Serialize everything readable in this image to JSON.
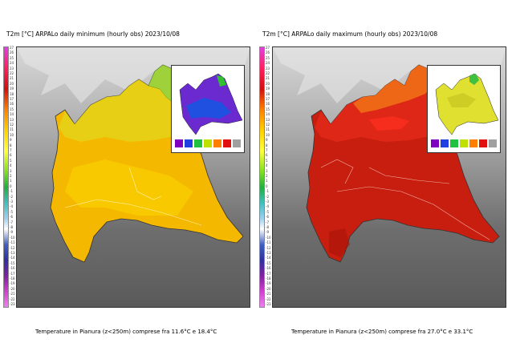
{
  "panels": [
    {
      "title": "T2m [°C] ARPALo daily minimum (hourly obs) 2023/10/08",
      "caption": "Temperature in Pianura (z<250m) comprese fra 11.6°C e 18.4°C",
      "fill_main": "#f5b800",
      "fill_north": "#e4d21a",
      "fill_alpine": "#9fd23a"
    },
    {
      "title": "T2m [°C] ARPALo daily maximum (hourly obs) 2023/10/08",
      "caption": "Temperature in Pianura (z<250m) comprese fra 27.0°C e 33.1°C",
      "fill_main": "#c81e10",
      "fill_north": "#e02818",
      "fill_alpine": "#f07818"
    }
  ],
  "colorbar_ticks": [
    "27",
    "26",
    "25",
    "24",
    "23",
    "22",
    "21",
    "20",
    "19",
    "18",
    "17",
    "16",
    "15",
    "14",
    "13",
    "12",
    "11",
    "10",
    "9",
    "8",
    "7",
    "6",
    "5",
    "4",
    "3",
    "2",
    "1",
    "0",
    "-1",
    "-2",
    "-3",
    "-4",
    "-5",
    "-6",
    "-7",
    "-8",
    "-9",
    "-10",
    "-11",
    "-12",
    "-13",
    "-14",
    "-15",
    "-16",
    "-17",
    "-18",
    "-19",
    "-20",
    "-21",
    "-22",
    "-23"
  ]
}
